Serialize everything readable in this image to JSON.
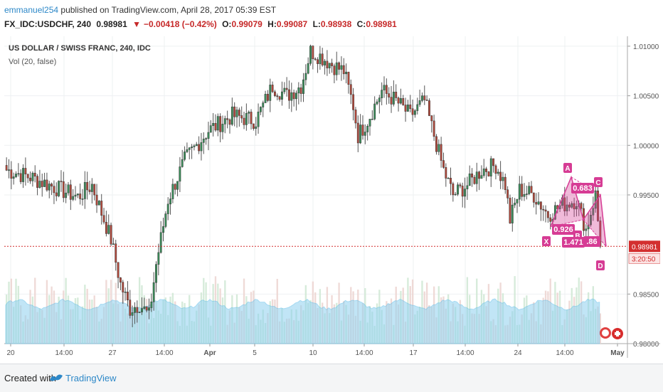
{
  "header": {
    "username": "emmanuel254",
    "published_text": "published on TradingView.com, April 28, 2017 05:39 EST",
    "symbol": "FX_IDC:USDCHF, 240",
    "last": "0.98981",
    "change_arrow": "▼",
    "change": "−0.00418 (−0.42%)",
    "o_label": "O:",
    "o_value": "0.99079",
    "h_label": "H:",
    "h_value": "0.99087",
    "l_label": "L:",
    "l_value": "0.98938",
    "c_label": "C:",
    "c_value": "0.98981"
  },
  "legend": {
    "title": "US DOLLAR / SWISS FRANC, 240, IDC",
    "volume": "Vol (20, false)"
  },
  "footer": {
    "created_with": "Created with",
    "brand": "TradingView"
  },
  "colors": {
    "up": "#3a8f5a",
    "down": "#b5483a",
    "pattern": "#d63c94",
    "vol_ma": "#8fd1ef",
    "price_line": "#d32f2f"
  },
  "chart_data": {
    "type": "candlestick",
    "ylim": [
      0.98,
      1.011
    ],
    "y_ticks": [
      "1.01000",
      "1.00500",
      "1.00000",
      "0.99500",
      "0.98500",
      "0.98000"
    ],
    "x_ticks": [
      "20",
      "14:00",
      "27",
      "14:00",
      "Apr",
      "5",
      "10",
      "14:00",
      "17",
      "14:00",
      "24",
      "14:00",
      "May"
    ],
    "last_price_label": "0.98981",
    "countdown_label": "3:20:50",
    "keypoints_close": [
      [
        0,
        0.9975
      ],
      [
        10,
        0.9968
      ],
      [
        22,
        0.9956
      ],
      [
        30,
        0.9948
      ],
      [
        36,
        0.996
      ],
      [
        40,
        0.9932
      ],
      [
        44,
        0.9905
      ],
      [
        48,
        0.986
      ],
      [
        52,
        0.9835
      ],
      [
        56,
        0.984
      ],
      [
        60,
        0.9828
      ],
      [
        63,
        0.988
      ],
      [
        68,
        0.9945
      ],
      [
        75,
        0.9985
      ],
      [
        85,
        1.0015
      ],
      [
        95,
        1.003
      ],
      [
        105,
        1.0025
      ],
      [
        112,
        1.006
      ],
      [
        118,
        1.005
      ],
      [
        124,
        1.006
      ],
      [
        128,
        1.0095
      ],
      [
        132,
        1.009
      ],
      [
        138,
        1.008
      ],
      [
        142,
        1.0075
      ],
      [
        146,
        1.004
      ],
      [
        148,
        1.001
      ],
      [
        152,
        1.0025
      ],
      [
        158,
        1.0055
      ],
      [
        164,
        1.0045
      ],
      [
        170,
        1.003
      ],
      [
        176,
        1.0045
      ],
      [
        180,
        1.001
      ],
      [
        184,
        0.9975
      ],
      [
        188,
        0.995
      ],
      [
        194,
        0.996
      ],
      [
        200,
        0.9975
      ],
      [
        206,
        0.998
      ],
      [
        210,
        0.996
      ],
      [
        212,
        0.9925
      ],
      [
        216,
        0.9955
      ],
      [
        222,
        0.995
      ],
      [
        228,
        0.993
      ],
      [
        234,
        0.994
      ],
      [
        240,
        0.9945
      ],
      [
        244,
        0.9915
      ],
      [
        248,
        0.995
      ],
      [
        250,
        0.9898
      ]
    ],
    "harmonic_pattern": {
      "points": [
        "X",
        "A",
        "B",
        "C",
        "D"
      ],
      "ratios": [
        "0.926",
        "0.683",
        "1.471",
        ".86"
      ]
    }
  }
}
